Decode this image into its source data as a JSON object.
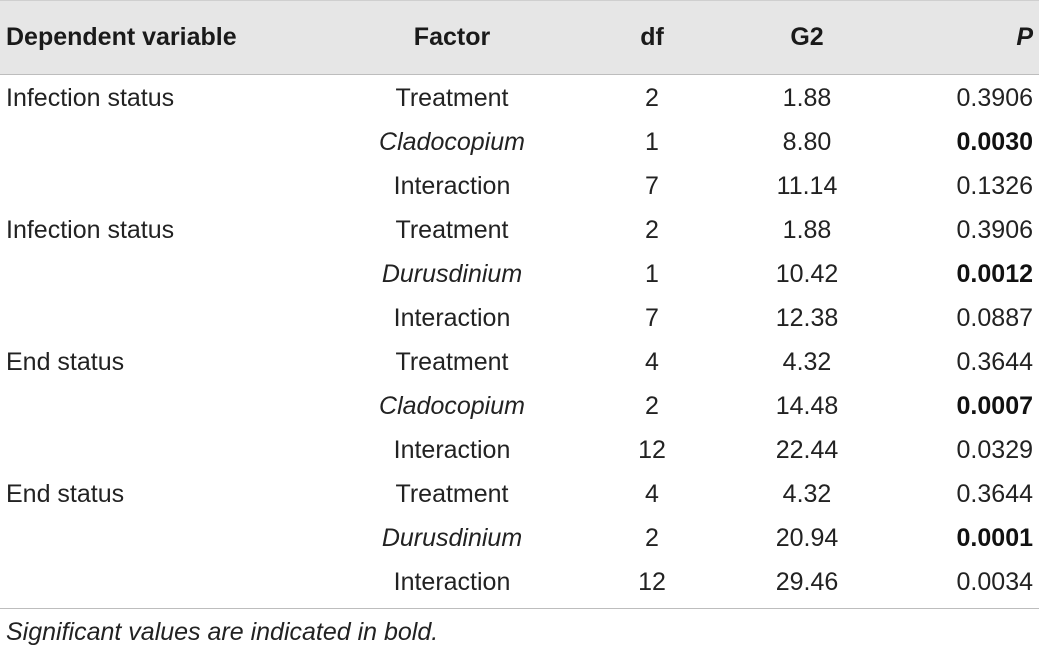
{
  "table": {
    "headers": {
      "dependent_variable": "Dependent variable",
      "factor": "Factor",
      "df": "df",
      "g2": "G2",
      "p": "P"
    },
    "rows": [
      {
        "dependent_variable": "Infection status",
        "factor": "Treatment",
        "df": "2",
        "g2": "1.88",
        "p": "0.3906",
        "factor_italic": false,
        "p_bold": false
      },
      {
        "dependent_variable": "",
        "factor": "Cladocopium",
        "df": "1",
        "g2": "8.80",
        "p": "0.0030",
        "factor_italic": true,
        "p_bold": true
      },
      {
        "dependent_variable": "",
        "factor": "Interaction",
        "df": "7",
        "g2": "11.14",
        "p": "0.1326",
        "factor_italic": false,
        "p_bold": false
      },
      {
        "dependent_variable": "Infection status",
        "factor": "Treatment",
        "df": "2",
        "g2": "1.88",
        "p": "0.3906",
        "factor_italic": false,
        "p_bold": false
      },
      {
        "dependent_variable": "",
        "factor": "Durusdinium",
        "df": "1",
        "g2": "10.42",
        "p": "0.0012",
        "factor_italic": true,
        "p_bold": true
      },
      {
        "dependent_variable": "",
        "factor": "Interaction",
        "df": "7",
        "g2": "12.38",
        "p": "0.0887",
        "factor_italic": false,
        "p_bold": false
      },
      {
        "dependent_variable": "End status",
        "factor": "Treatment",
        "df": "4",
        "g2": "4.32",
        "p": "0.3644",
        "factor_italic": false,
        "p_bold": false
      },
      {
        "dependent_variable": "",
        "factor": "Cladocopium",
        "df": "2",
        "g2": "14.48",
        "p": "0.0007",
        "factor_italic": true,
        "p_bold": true
      },
      {
        "dependent_variable": "",
        "factor": "Interaction",
        "df": "12",
        "g2": "22.44",
        "p": "0.0329",
        "factor_italic": false,
        "p_bold": false
      },
      {
        "dependent_variable": "End status",
        "factor": "Treatment",
        "df": "4",
        "g2": "4.32",
        "p": "0.3644",
        "factor_italic": false,
        "p_bold": false
      },
      {
        "dependent_variable": "",
        "factor": "Durusdinium",
        "df": "2",
        "g2": "20.94",
        "p": "0.0001",
        "factor_italic": true,
        "p_bold": true
      },
      {
        "dependent_variable": "",
        "factor": "Interaction",
        "df": "12",
        "g2": "29.46",
        "p": "0.0034",
        "factor_italic": false,
        "p_bold": false
      }
    ]
  },
  "footnote": "Significant values are indicated in bold.",
  "colors": {
    "header_background": "#e6e6e6",
    "text": "#222222"
  }
}
